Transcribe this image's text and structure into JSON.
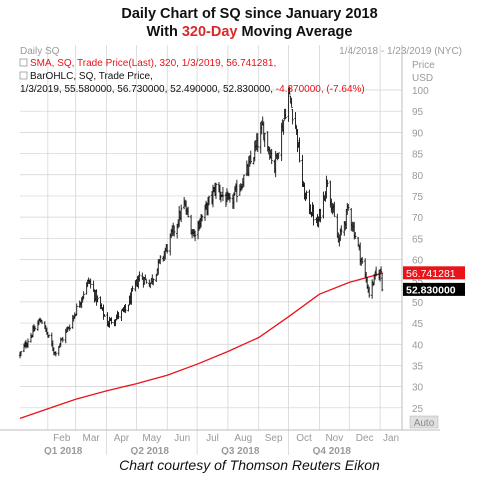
{
  "title": {
    "line1": "Daily Chart of SQ since January 2018",
    "line2_prefix": "With ",
    "line2_highlight": "320-Day",
    "line2_suffix": " Moving Average",
    "highlight_color": "#d82a2a"
  },
  "panel": {
    "name": "Daily SQ",
    "date_range": "1/4/2018 - 1/23/2019 (NYC)",
    "price_axis_label": "Price",
    "currency": "USD",
    "auto_button": "Auto"
  },
  "legend": {
    "sma_text": "SMA, SQ, Trade Price(Last),  320,  1/3/2019, 56.741281,",
    "bar_line1": "BarOHLC, SQ, Trade Price,",
    "bar_line2_a": "1/3/2019, 55.580000, 56.730000, 52.490000, 52.830000, ",
    "bar_line2_b": "-4.370000, (-7.64%)"
  },
  "price_tags": {
    "sma": "56.741281",
    "close": "52.830000"
  },
  "footer": "Chart courtesy of Thomson Reuters Eikon",
  "colors": {
    "sma_line": "#e8141a",
    "price_bars": "#111111",
    "grid": "#d0d0d0",
    "sma_tag_bg": "#e8141a",
    "close_tag_bg": "#000000",
    "text_gray": "#9a9a9a",
    "negative_change": "#e8141a"
  },
  "chart_data": {
    "type": "ohlc",
    "series": [
      {
        "name": "SMA, SQ, Trade Price(Last), 320",
        "type": "line",
        "color": "#e8141a"
      },
      {
        "name": "BarOHLC, SQ, Trade Price",
        "type": "ohlc",
        "color": "#111111"
      }
    ],
    "y_ticks": [
      25,
      30,
      35,
      40,
      45,
      50,
      55,
      60,
      65,
      70,
      75,
      80,
      85,
      90,
      95,
      100
    ],
    "ylim": [
      20,
      100
    ],
    "x_months": [
      "Feb",
      "Mar",
      "Apr",
      "May",
      "Jun",
      "Jul",
      "Aug",
      "Sep",
      "Oct",
      "Nov",
      "Dec",
      "Jan"
    ],
    "x_quarters": [
      "Q1 2018",
      "Q2 2018",
      "Q3 2018",
      "Q4 2018"
    ],
    "x_range": [
      "2018-01-04",
      "2019-01-23"
    ],
    "sma_keypoints": [
      {
        "date": "2018-01-04",
        "value": 22.5
      },
      {
        "date": "2018-02-01",
        "value": 24.8
      },
      {
        "date": "2018-03-01",
        "value": 27.0
      },
      {
        "date": "2018-04-01",
        "value": 29.0
      },
      {
        "date": "2018-05-01",
        "value": 30.7
      },
      {
        "date": "2018-06-01",
        "value": 32.7
      },
      {
        "date": "2018-07-01",
        "value": 35.3
      },
      {
        "date": "2018-08-01",
        "value": 38.3
      },
      {
        "date": "2018-09-01",
        "value": 41.6
      },
      {
        "date": "2018-10-01",
        "value": 46.5
      },
      {
        "date": "2018-11-01",
        "value": 51.8
      },
      {
        "date": "2018-12-01",
        "value": 54.6
      },
      {
        "date": "2019-01-03",
        "value": 56.74
      },
      {
        "date": "2019-01-04",
        "value": 56.8
      }
    ],
    "close_keypoints": [
      {
        "date": "2018-01-04",
        "value": 37.5
      },
      {
        "date": "2018-01-12",
        "value": 41.0
      },
      {
        "date": "2018-01-25",
        "value": 46.0
      },
      {
        "date": "2018-02-08",
        "value": 38.0
      },
      {
        "date": "2018-02-23",
        "value": 44.5
      },
      {
        "date": "2018-03-14",
        "value": 55.0
      },
      {
        "date": "2018-04-02",
        "value": 45.0
      },
      {
        "date": "2018-04-20",
        "value": 48.0
      },
      {
        "date": "2018-05-04",
        "value": 56.0
      },
      {
        "date": "2018-05-15",
        "value": 54.5
      },
      {
        "date": "2018-06-01",
        "value": 63.0
      },
      {
        "date": "2018-06-18",
        "value": 73.0
      },
      {
        "date": "2018-06-27",
        "value": 66.0
      },
      {
        "date": "2018-07-06",
        "value": 70.0
      },
      {
        "date": "2018-07-20",
        "value": 77.0
      },
      {
        "date": "2018-08-03",
        "value": 73.0
      },
      {
        "date": "2018-08-21",
        "value": 81.0
      },
      {
        "date": "2018-09-05",
        "value": 91.0
      },
      {
        "date": "2018-09-17",
        "value": 82.0
      },
      {
        "date": "2018-10-01",
        "value": 99.0
      },
      {
        "date": "2018-10-08",
        "value": 92.0
      },
      {
        "date": "2018-10-16",
        "value": 76.0
      },
      {
        "date": "2018-10-30",
        "value": 68.0
      },
      {
        "date": "2018-11-09",
        "value": 79.0
      },
      {
        "date": "2018-11-20",
        "value": 64.0
      },
      {
        "date": "2018-11-30",
        "value": 72.0
      },
      {
        "date": "2018-12-10",
        "value": 63.0
      },
      {
        "date": "2018-12-21",
        "value": 52.0
      },
      {
        "date": "2018-12-27",
        "value": 56.0
      },
      {
        "date": "2019-01-02",
        "value": 57.2
      },
      {
        "date": "2019-01-03",
        "value": 52.83
      }
    ],
    "last_bar": {
      "date": "2019-01-03",
      "open": 55.58,
      "high": 56.73,
      "low": 52.49,
      "close": 52.83,
      "change": -4.37,
      "change_pct": -7.64
    },
    "last_sma": 56.741281
  }
}
